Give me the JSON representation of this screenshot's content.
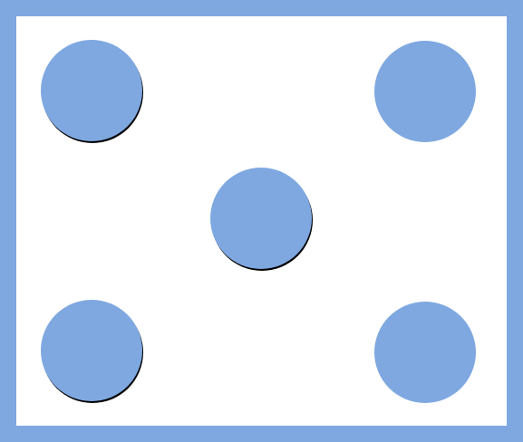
{
  "colors": {
    "fill": "#7fa8e1",
    "frame": "#7fa8e1",
    "background": "#ffffff",
    "shadow": "#000000"
  },
  "die": {
    "face_value": 5,
    "pips": [
      {
        "name": "top-left",
        "shadow": true
      },
      {
        "name": "top-right",
        "shadow": false
      },
      {
        "name": "center",
        "shadow": true
      },
      {
        "name": "bottom-left",
        "shadow": true
      },
      {
        "name": "bottom-right",
        "shadow": false
      }
    ]
  }
}
